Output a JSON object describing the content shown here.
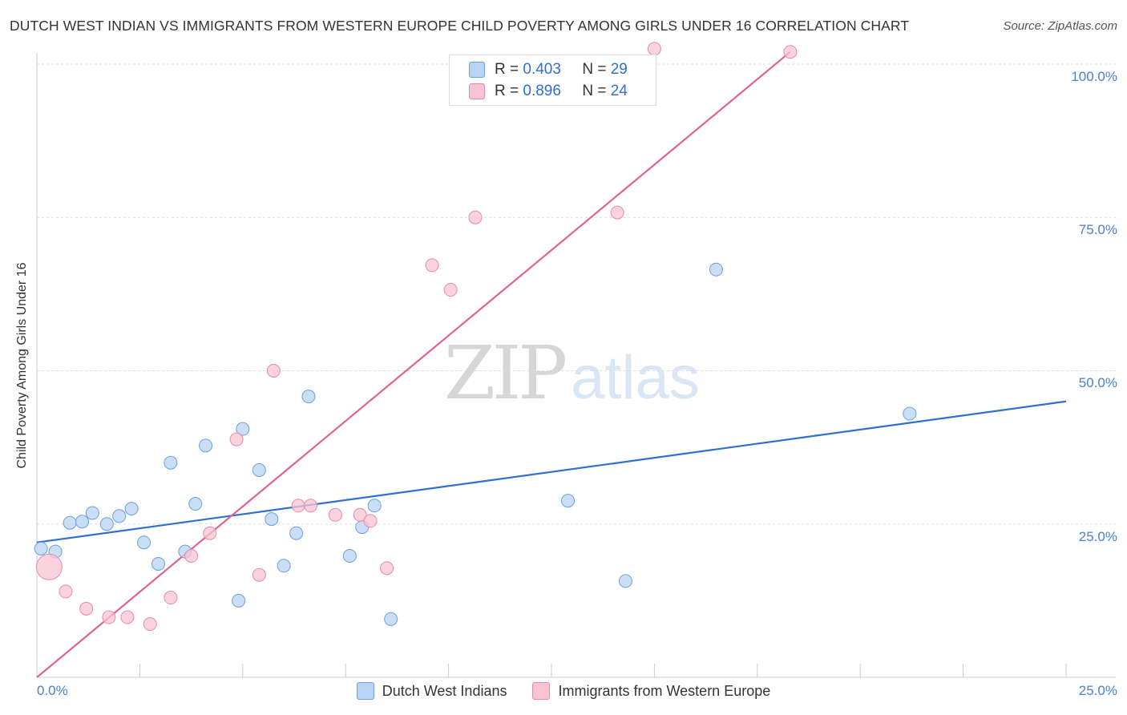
{
  "header": {
    "title": "DUTCH WEST INDIAN VS IMMIGRANTS FROM WESTERN EUROPE CHILD POVERTY AMONG GIRLS UNDER 16 CORRELATION CHART",
    "source": "Source: ZipAtlas.com"
  },
  "watermark": {
    "zip": "ZIP",
    "atlas": "atlas"
  },
  "legend": {
    "series1": {
      "r_label": "R =",
      "r_value": "0.403",
      "n_label": "N =",
      "n_value": "29"
    },
    "series2": {
      "r_label": "R =",
      "r_value": "0.896",
      "n_label": "N =",
      "n_value": "24"
    }
  },
  "colors": {
    "blue_fill": "#b8d3f3",
    "blue_stroke": "#6c9fe0",
    "blue_line": "#2f6fcf",
    "pink_fill": "#f8c4d3",
    "pink_stroke": "#e88aa8",
    "pink_line": "#e0648c",
    "grid": "#dddddd",
    "tick_text": "#4a7fd0"
  },
  "chart_data": {
    "type": "scatter",
    "title": "DUTCH WEST INDIAN VS IMMIGRANTS FROM WESTERN EUROPE CHILD POVERTY AMONG GIRLS UNDER 16 CORRELATION CHART",
    "xlabel": "",
    "ylabel": "Child Poverty Among Girls Under 16",
    "xlim": [
      0,
      25
    ],
    "ylim": [
      0,
      100
    ],
    "x_tick_labels": [
      "0.0%",
      "25.0%"
    ],
    "y_tick_labels": [
      "25.0%",
      "50.0%",
      "75.0%",
      "100.0%"
    ],
    "y_ticks": [
      25,
      50,
      75,
      100
    ],
    "series": [
      {
        "name": "Dutch West Indians",
        "color": "#b8d3f3",
        "points": [
          [
            0.1,
            21.0
          ],
          [
            0.45,
            20.5
          ],
          [
            0.8,
            25.2
          ],
          [
            1.1,
            25.4
          ],
          [
            1.35,
            26.8
          ],
          [
            1.7,
            25.0
          ],
          [
            2.0,
            26.3
          ],
          [
            2.3,
            27.5
          ],
          [
            2.6,
            22.0
          ],
          [
            2.95,
            18.5
          ],
          [
            3.25,
            35.0
          ],
          [
            3.6,
            20.5
          ],
          [
            3.85,
            28.3
          ],
          [
            4.1,
            37.8
          ],
          [
            5.0,
            40.5
          ],
          [
            4.9,
            12.5
          ],
          [
            5.4,
            33.8
          ],
          [
            5.7,
            25.8
          ],
          [
            6.0,
            18.2
          ],
          [
            6.3,
            23.5
          ],
          [
            6.6,
            45.8
          ],
          [
            7.6,
            19.8
          ],
          [
            7.9,
            24.5
          ],
          [
            8.2,
            28.0
          ],
          [
            8.6,
            9.5
          ],
          [
            12.9,
            28.8
          ],
          [
            14.3,
            15.7
          ],
          [
            16.5,
            66.5
          ],
          [
            21.2,
            43.0
          ]
        ],
        "trend": {
          "x": [
            0,
            25
          ],
          "y": [
            22.0,
            45.0
          ]
        }
      },
      {
        "name": "Immigrants from Western Europe",
        "color": "#f8c4d3",
        "points": [
          [
            0.3,
            18.0
          ],
          [
            0.7,
            14.0
          ],
          [
            1.2,
            11.2
          ],
          [
            1.75,
            9.8
          ],
          [
            2.2,
            9.8
          ],
          [
            2.75,
            8.7
          ],
          [
            3.25,
            13.0
          ],
          [
            3.75,
            19.8
          ],
          [
            4.2,
            23.5
          ],
          [
            4.85,
            38.8
          ],
          [
            5.4,
            16.7
          ],
          [
            5.75,
            50.0
          ],
          [
            6.35,
            28.0
          ],
          [
            6.65,
            28.0
          ],
          [
            7.25,
            26.5
          ],
          [
            7.85,
            26.5
          ],
          [
            8.1,
            25.5
          ],
          [
            8.5,
            17.8
          ],
          [
            9.6,
            67.2
          ],
          [
            10.05,
            63.2
          ],
          [
            10.65,
            75.0
          ],
          [
            14.1,
            75.8
          ],
          [
            15.0,
            102.5
          ],
          [
            18.3,
            102.0
          ]
        ],
        "trend": {
          "x": [
            0,
            18.3
          ],
          "y": [
            0,
            102.0
          ]
        }
      }
    ],
    "legend": [
      "Dutch West Indians",
      "Immigrants from Western Europe"
    ]
  }
}
